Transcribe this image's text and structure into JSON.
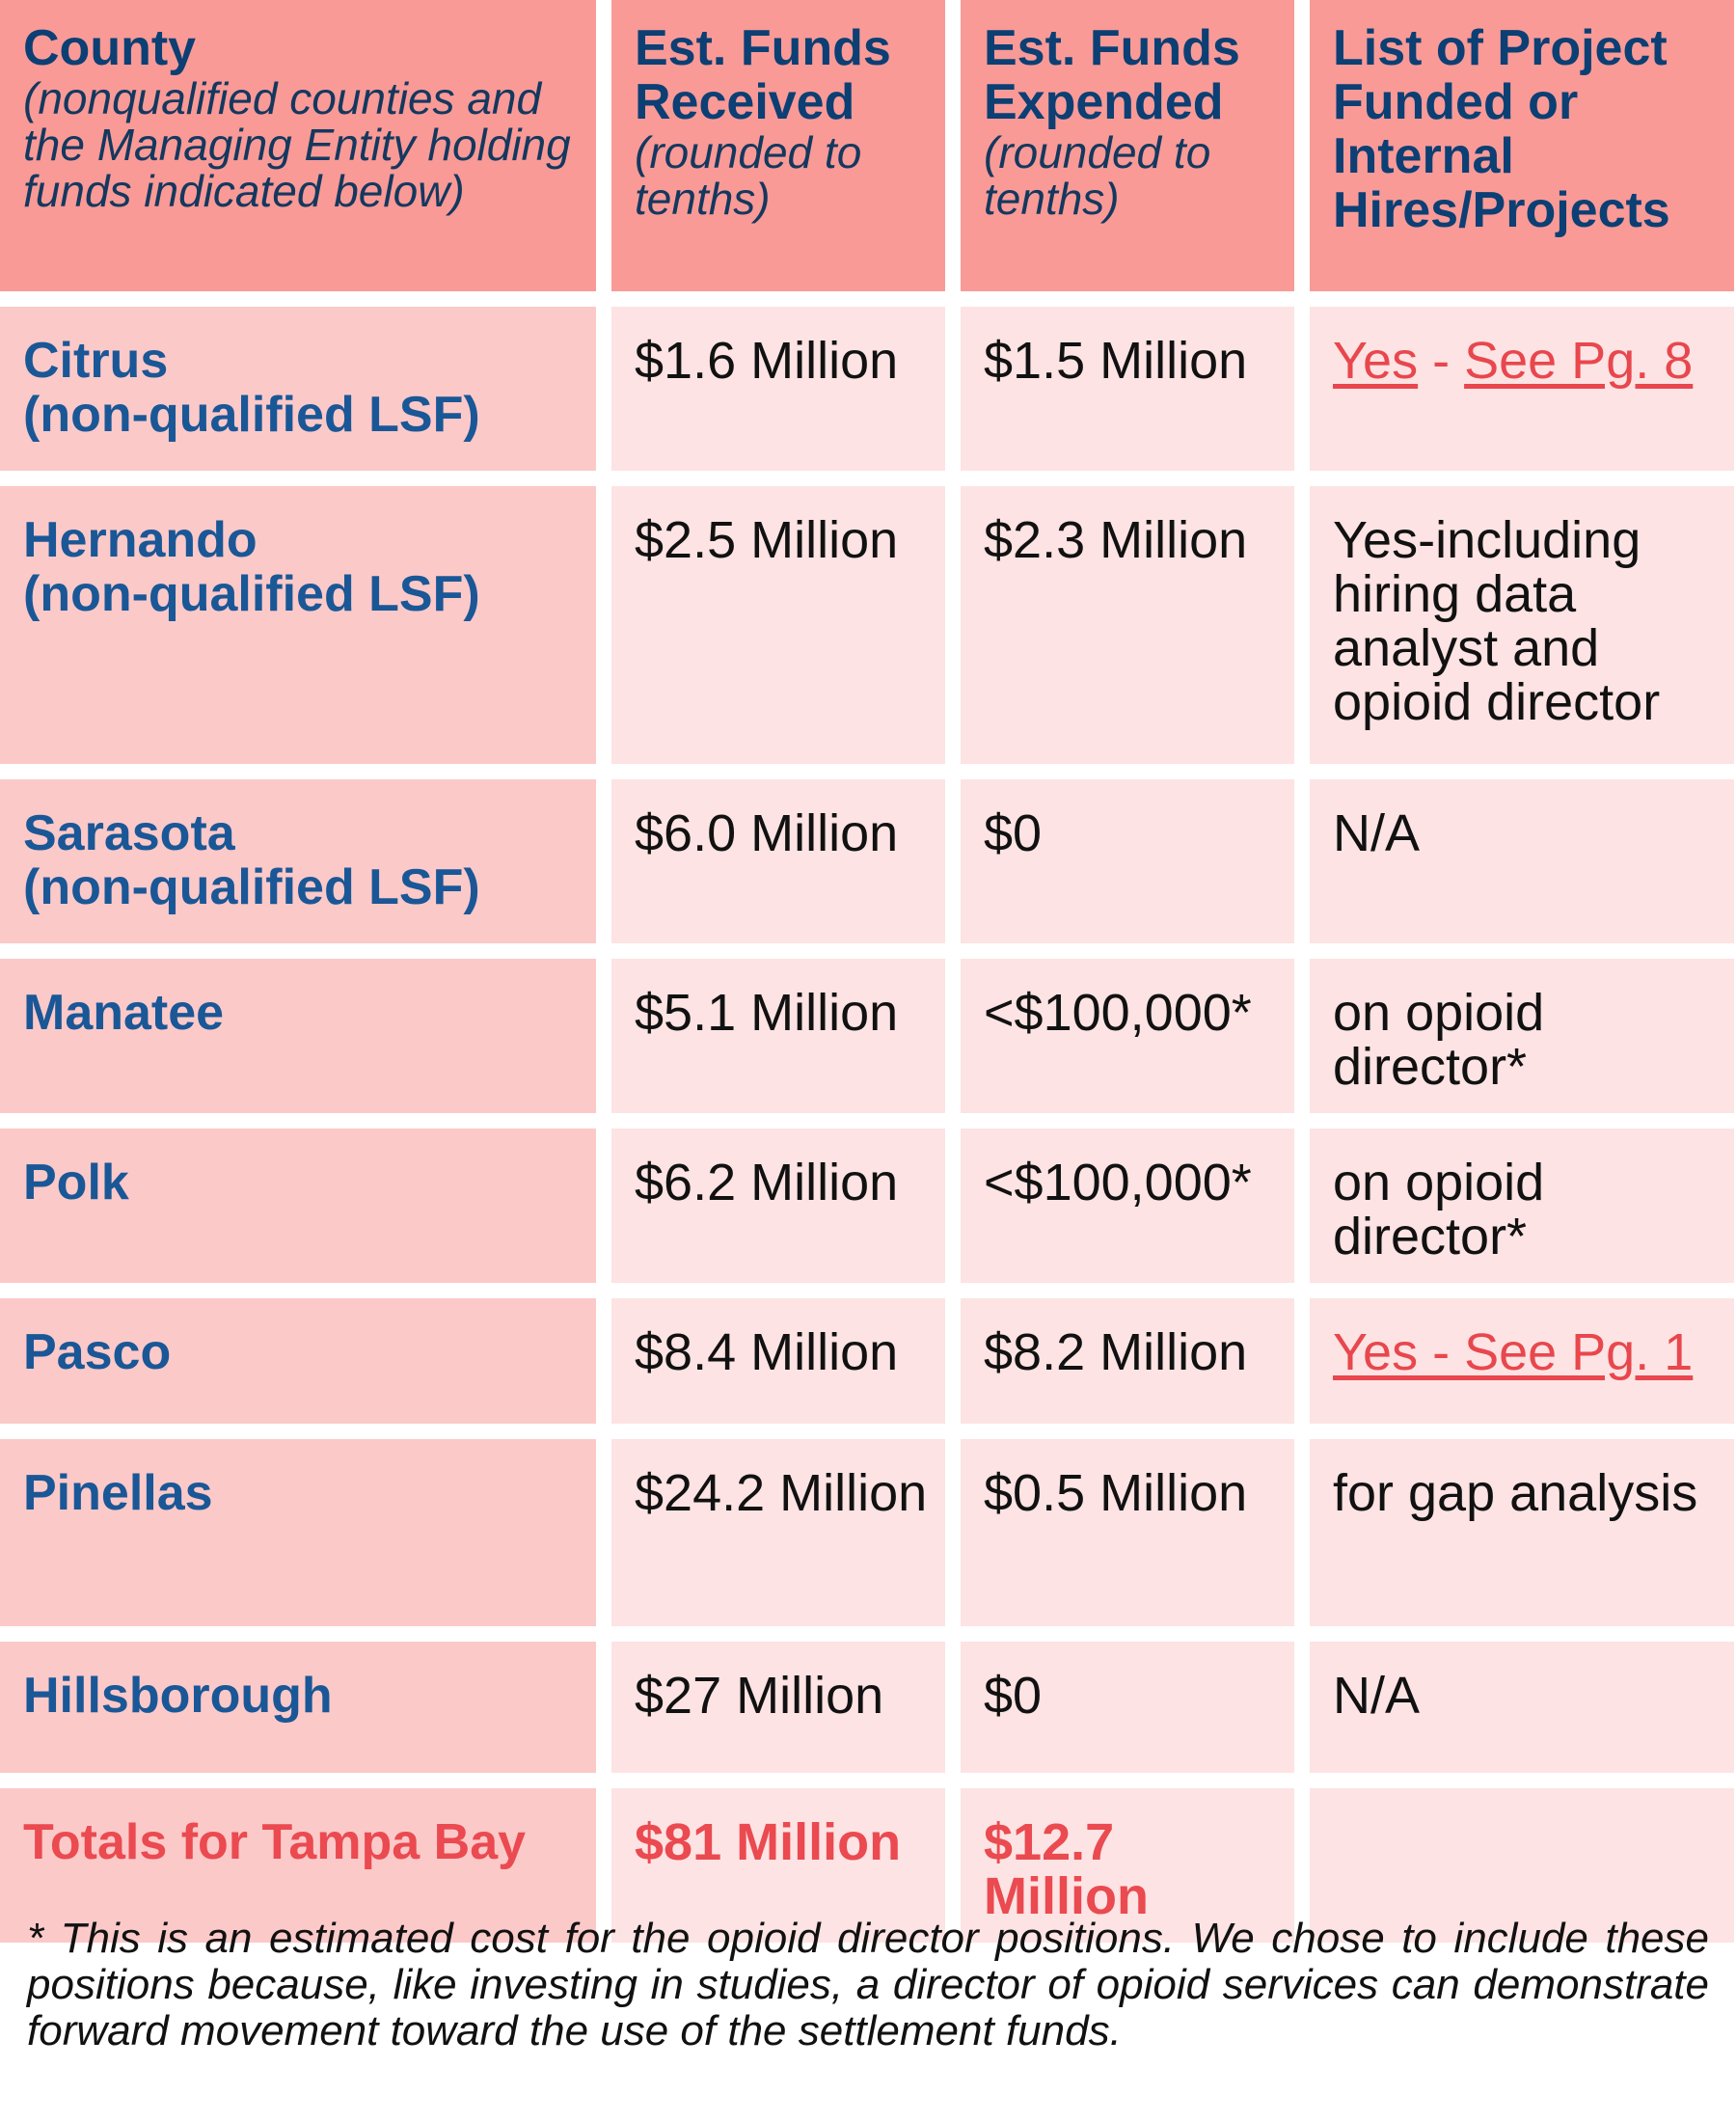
{
  "header": {
    "col1_title": "County",
    "col1_sub": "(nonqualified counties and the Managing Entity holding funds indicated below)",
    "col2_title": "Est. Funds Received",
    "col2_sub": "(rounded to tenths)",
    "col3_title": "Est. Funds Expended",
    "col3_sub": "(rounded to tenths)",
    "col4_title": "List of Project Funded or Internal Hires/Projects"
  },
  "rows": [
    {
      "county": "Citrus",
      "qual": "(non-qualified LSF)",
      "received": "$1.6 Million",
      "expended": "$1.5 Million",
      "projects": "",
      "link_a": "Yes",
      "link_sep": " - ",
      "link_b": "See Pg. 8"
    },
    {
      "county": "Hernando",
      "qual": "(non-qualified LSF)",
      "received": "$2.5 Million",
      "expended": "$2.3 Million",
      "projects": "Yes-including hiring data analyst and opioid director"
    },
    {
      "county": "Sarasota",
      "qual": "(non-qualified LSF)",
      "received": "$6.0 Million",
      "expended": "$0",
      "projects": "N/A"
    },
    {
      "county": "Manatee",
      "qual": "",
      "received": "$5.1 Million",
      "expended": "<$100,000*",
      "projects": "on opioid director*"
    },
    {
      "county": "Polk",
      "qual": "",
      "received": "$6.2 Million",
      "expended": "<$100,000*",
      "projects": "on opioid director*"
    },
    {
      "county": "Pasco",
      "qual": "",
      "received": "$8.4 Million",
      "expended": "$8.2 Million",
      "projects": "",
      "link_full": "Yes - See Pg. 1"
    },
    {
      "county": "Pinellas",
      "qual": "",
      "received": "$24.2 Million",
      "expended": "$0.5 Million",
      "projects": "for gap analysis"
    },
    {
      "county": "Hillsborough",
      "qual": "",
      "received": "$27 Million",
      "expended": "$0",
      "projects": "N/A"
    }
  ],
  "totals": {
    "label": "Totals for Tampa Bay",
    "received": "$81 Million",
    "expended": "$12.7 Million",
    "projects": ""
  },
  "footnote": "* This is an estimated cost for the opioid director positions. We chose to include these positions because, like investing in studies, a director of opioid services can demonstrate forward movement toward the use of the settlement funds.",
  "colors": {
    "header_bg": "#f99a97",
    "county_bg": "#fcc9c9",
    "cell_bg": "#fde3e3",
    "county_text": "#1a5796",
    "header_text": "#0c3f73",
    "accent_red": "#ea4a50"
  }
}
